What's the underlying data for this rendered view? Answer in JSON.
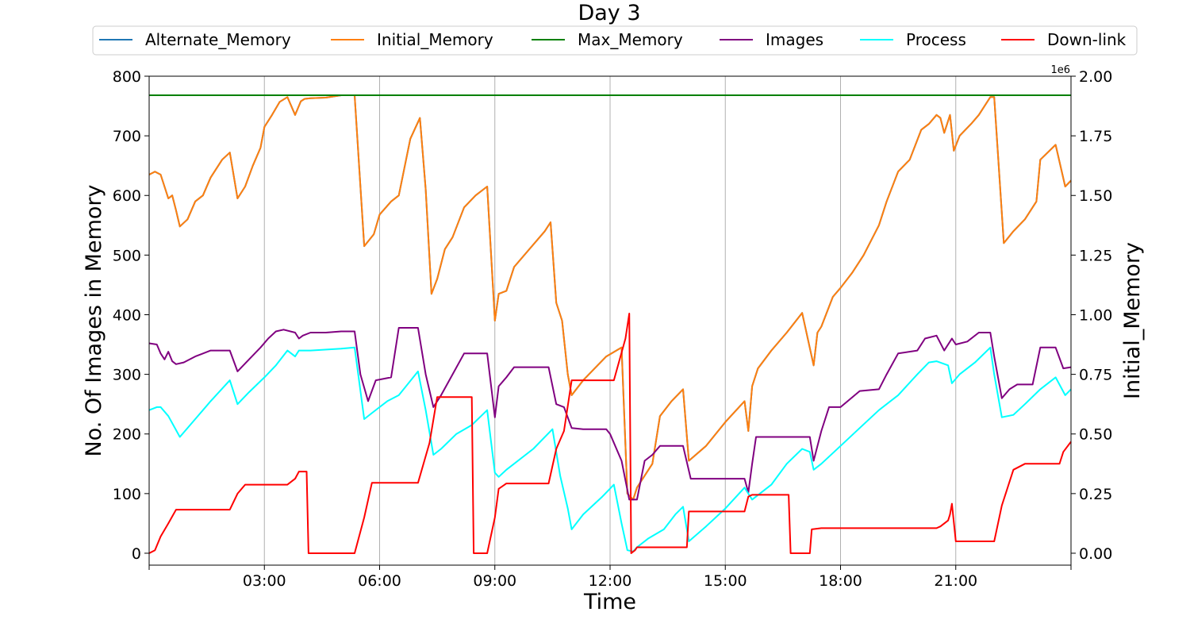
{
  "chart_data": {
    "type": "line",
    "title": "Day 3",
    "xlabel": "Time",
    "ylabel": "No. Of Images in Memory",
    "y2label": "Initial_Memory",
    "y2_offset_text": "1e6",
    "xlim": [
      0,
      24
    ],
    "ylim": [
      -20,
      800
    ],
    "y2lim": [
      -0.05,
      2.0
    ],
    "x_ticks": [
      3,
      6,
      9,
      12,
      15,
      18,
      21
    ],
    "x_tick_labels": [
      "03:00",
      "06:00",
      "09:00",
      "12:00",
      "15:00",
      "18:00",
      "21:00"
    ],
    "y_ticks": [
      0,
      100,
      200,
      300,
      400,
      500,
      600,
      700,
      800
    ],
    "y2_ticks": [
      0.0,
      0.25,
      0.5,
      0.75,
      1.0,
      1.25,
      1.5,
      1.75,
      2.0
    ],
    "y2_tick_labels": [
      "0.00",
      "0.25",
      "0.50",
      "0.75",
      "1.00",
      "1.25",
      "1.50",
      "1.75",
      "2.00"
    ],
    "grid": "vertical",
    "legend_position": "top",
    "series": [
      {
        "name": "Alternate_Memory",
        "color": "#1f77b4",
        "axis": "left",
        "x": [
          0,
          0.15,
          0.3,
          0.5,
          0.6,
          0.7,
          0.8,
          1.0,
          1.2,
          1.4,
          1.6,
          1.9,
          2.1,
          2.3,
          2.5,
          2.7,
          2.9,
          3.0,
          3.2,
          3.4,
          3.6,
          3.8,
          3.95,
          4.05,
          4.2,
          4.6,
          5.0,
          5.35,
          5.6,
          5.85,
          6.0,
          6.3,
          6.5,
          6.8,
          7.05,
          7.2,
          7.35,
          7.5,
          7.7,
          7.9,
          8.2,
          8.5,
          8.8,
          9.0,
          9.1,
          9.3,
          9.5,
          9.9,
          10.3,
          10.45,
          10.6,
          10.75,
          10.9,
          11.0,
          11.3,
          11.6,
          11.9,
          12.3,
          12.45,
          12.6,
          12.7,
          12.8,
          13.1,
          13.3,
          13.6,
          13.9,
          14.05,
          14.5,
          15.0,
          15.5,
          15.6,
          15.7,
          15.85,
          16.2,
          16.6,
          17.0,
          17.3,
          17.4,
          17.5,
          17.8,
          18.0,
          18.3,
          18.6,
          19.0,
          19.2,
          19.5,
          19.8,
          20.1,
          20.3,
          20.5,
          20.6,
          20.7,
          20.85,
          20.95,
          21.1,
          21.4,
          21.6,
          21.9,
          22.0,
          22.25,
          22.5,
          22.8,
          23.1,
          23.2,
          23.6,
          23.85,
          24.0
        ],
        "values": [
          635,
          640,
          635,
          595,
          600,
          575,
          548,
          560,
          590,
          600,
          630,
          660,
          672,
          595,
          615,
          650,
          680,
          715,
          735,
          757,
          765,
          735,
          758,
          762,
          763,
          764,
          768,
          768,
          515,
          535,
          568,
          590,
          600,
          695,
          730,
          610,
          435,
          460,
          510,
          530,
          580,
          600,
          615,
          390,
          435,
          440,
          480,
          510,
          540,
          555,
          420,
          390,
          300,
          265,
          290,
          310,
          330,
          345,
          100,
          90,
          110,
          120,
          150,
          230,
          255,
          275,
          155,
          180,
          220,
          255,
          205,
          280,
          310,
          340,
          370,
          403,
          315,
          370,
          380,
          430,
          445,
          470,
          500,
          550,
          590,
          640,
          660,
          710,
          720,
          735,
          730,
          705,
          735,
          675,
          700,
          720,
          735,
          765,
          765,
          520,
          540,
          560,
          590,
          660,
          685,
          615,
          625
        ]
      },
      {
        "name": "Initial_Memory",
        "color": "#ff7f0e",
        "axis": "left",
        "x": [
          0,
          0.15,
          0.3,
          0.5,
          0.6,
          0.7,
          0.8,
          1.0,
          1.2,
          1.4,
          1.6,
          1.9,
          2.1,
          2.3,
          2.5,
          2.7,
          2.9,
          3.0,
          3.2,
          3.4,
          3.6,
          3.8,
          3.95,
          4.05,
          4.2,
          4.6,
          5.0,
          5.35,
          5.6,
          5.85,
          6.0,
          6.3,
          6.5,
          6.8,
          7.05,
          7.2,
          7.35,
          7.5,
          7.7,
          7.9,
          8.2,
          8.5,
          8.8,
          9.0,
          9.1,
          9.3,
          9.5,
          9.9,
          10.3,
          10.45,
          10.6,
          10.75,
          10.9,
          11.0,
          11.3,
          11.6,
          11.9,
          12.3,
          12.45,
          12.6,
          12.7,
          12.8,
          13.1,
          13.3,
          13.6,
          13.9,
          14.05,
          14.5,
          15.0,
          15.5,
          15.6,
          15.7,
          15.85,
          16.2,
          16.6,
          17.0,
          17.3,
          17.4,
          17.5,
          17.8,
          18.0,
          18.3,
          18.6,
          19.0,
          19.2,
          19.5,
          19.8,
          20.1,
          20.3,
          20.5,
          20.6,
          20.7,
          20.85,
          20.95,
          21.1,
          21.4,
          21.6,
          21.9,
          22.0,
          22.25,
          22.5,
          22.8,
          23.1,
          23.2,
          23.6,
          23.85,
          24.0
        ],
        "values": [
          635,
          640,
          635,
          595,
          600,
          575,
          548,
          560,
          590,
          600,
          630,
          660,
          672,
          595,
          615,
          650,
          680,
          715,
          735,
          757,
          765,
          735,
          758,
          762,
          763,
          764,
          768,
          768,
          515,
          535,
          568,
          590,
          600,
          695,
          730,
          610,
          435,
          460,
          510,
          530,
          580,
          600,
          615,
          390,
          435,
          440,
          480,
          510,
          540,
          555,
          420,
          390,
          300,
          265,
          290,
          310,
          330,
          345,
          100,
          90,
          110,
          120,
          150,
          230,
          255,
          275,
          155,
          180,
          220,
          255,
          205,
          280,
          310,
          340,
          370,
          403,
          315,
          370,
          380,
          430,
          445,
          470,
          500,
          550,
          590,
          640,
          660,
          710,
          720,
          735,
          730,
          705,
          735,
          675,
          700,
          720,
          735,
          765,
          765,
          520,
          540,
          560,
          590,
          660,
          685,
          615,
          625
        ]
      },
      {
        "name": "Max_Memory",
        "color": "#008000",
        "axis": "left",
        "x": [
          0,
          24
        ],
        "values": [
          768,
          768
        ]
      },
      {
        "name": "Images",
        "color": "#800080",
        "axis": "left",
        "x": [
          0,
          0.2,
          0.3,
          0.4,
          0.5,
          0.6,
          0.7,
          0.9,
          1.2,
          1.6,
          2.1,
          2.3,
          2.6,
          2.9,
          3.1,
          3.3,
          3.5,
          3.8,
          3.9,
          4.0,
          4.2,
          4.6,
          5.0,
          5.35,
          5.5,
          5.7,
          5.9,
          6.3,
          6.5,
          7.0,
          7.2,
          7.4,
          7.6,
          7.9,
          8.2,
          8.8,
          9.0,
          9.1,
          9.3,
          9.5,
          10.4,
          10.6,
          10.8,
          11.0,
          11.3,
          11.9,
          12.0,
          12.3,
          12.5,
          12.7,
          12.9,
          13.1,
          13.3,
          13.6,
          13.9,
          14.1,
          15.0,
          15.5,
          15.6,
          15.7,
          15.8,
          16.5,
          17.2,
          17.3,
          17.5,
          17.7,
          18.0,
          18.5,
          19.0,
          19.2,
          19.5,
          20.0,
          20.2,
          20.5,
          20.7,
          20.9,
          21.0,
          21.3,
          21.6,
          21.9,
          22.0,
          22.2,
          22.4,
          22.6,
          23.0,
          23.2,
          23.6,
          23.8,
          24.0
        ],
        "values": [
          352,
          350,
          335,
          325,
          338,
          322,
          317,
          320,
          330,
          340,
          340,
          305,
          325,
          345,
          360,
          372,
          375,
          370,
          360,
          365,
          370,
          370,
          372,
          372,
          300,
          255,
          290,
          295,
          378,
          378,
          300,
          245,
          265,
          300,
          335,
          335,
          228,
          280,
          295,
          312,
          312,
          250,
          245,
          210,
          208,
          208,
          200,
          155,
          90,
          90,
          155,
          165,
          180,
          180,
          180,
          125,
          125,
          125,
          102,
          150,
          195,
          195,
          195,
          155,
          205,
          245,
          245,
          272,
          275,
          300,
          335,
          340,
          360,
          365,
          340,
          360,
          350,
          355,
          370,
          370,
          330,
          260,
          275,
          283,
          283,
          345,
          345,
          310,
          312
        ]
      },
      {
        "name": "Process",
        "color": "#00ffff",
        "axis": "left",
        "x": [
          0,
          0.2,
          0.3,
          0.5,
          0.8,
          1.2,
          1.6,
          2.1,
          2.3,
          2.6,
          3.0,
          3.3,
          3.6,
          3.8,
          3.9,
          4.0,
          4.2,
          5.0,
          5.35,
          5.6,
          5.8,
          6.2,
          6.5,
          7.0,
          7.2,
          7.4,
          7.6,
          8.0,
          8.4,
          8.8,
          9.0,
          9.1,
          9.3,
          10.0,
          10.5,
          10.7,
          10.9,
          11.0,
          11.3,
          11.8,
          12.1,
          12.3,
          12.45,
          12.6,
          12.7,
          13.0,
          13.4,
          13.7,
          13.9,
          14.05,
          14.5,
          15.0,
          15.5,
          15.6,
          15.7,
          16.2,
          16.6,
          17.0,
          17.2,
          17.3,
          17.5,
          18.0,
          18.5,
          19.0,
          19.5,
          20.0,
          20.3,
          20.5,
          20.8,
          20.9,
          21.1,
          21.5,
          21.9,
          22.0,
          22.2,
          22.5,
          22.8,
          23.2,
          23.6,
          23.85,
          24.0
        ],
        "values": [
          240,
          245,
          245,
          230,
          195,
          225,
          255,
          290,
          250,
          270,
          295,
          315,
          340,
          330,
          340,
          340,
          340,
          343,
          345,
          225,
          235,
          255,
          265,
          305,
          240,
          165,
          175,
          200,
          215,
          240,
          135,
          128,
          140,
          175,
          208,
          130,
          75,
          40,
          65,
          95,
          115,
          50,
          5,
          3,
          10,
          25,
          40,
          65,
          78,
          20,
          45,
          75,
          110,
          100,
          90,
          115,
          150,
          175,
          170,
          140,
          150,
          180,
          210,
          240,
          265,
          300,
          320,
          322,
          315,
          285,
          300,
          320,
          345,
          300,
          228,
          232,
          250,
          275,
          295,
          265,
          275
        ]
      },
      {
        "name": "Down-link",
        "color": "#ff0000",
        "axis": "left",
        "x": [
          0,
          0.15,
          0.3,
          0.5,
          0.7,
          2.1,
          2.3,
          2.5,
          3.6,
          3.8,
          3.9,
          4.1,
          4.15,
          4.5,
          5.35,
          5.6,
          5.8,
          7.0,
          7.3,
          7.5,
          8.4,
          8.45,
          8.8,
          9.0,
          9.1,
          9.3,
          10.4,
          10.6,
          10.8,
          11.0,
          12.1,
          12.4,
          12.5,
          12.55,
          12.65,
          12.7,
          12.8,
          13.0,
          13.5,
          14.0,
          14.05,
          14.2,
          15.5,
          15.6,
          15.7,
          16.65,
          16.7,
          17.0,
          17.2,
          17.25,
          17.5,
          20.5,
          20.6,
          20.8,
          20.85,
          20.9,
          21.0,
          21.5,
          21.8,
          22.0,
          22.2,
          22.5,
          22.8,
          23.5,
          23.7,
          23.8,
          24.0
        ],
        "values": [
          0,
          5,
          28,
          50,
          73,
          73,
          100,
          115,
          115,
          125,
          137,
          137,
          0,
          0,
          0,
          60,
          118,
          118,
          185,
          262,
          262,
          0,
          0,
          60,
          108,
          117,
          117,
          175,
          205,
          290,
          290,
          360,
          402,
          0,
          5,
          10,
          10,
          10,
          10,
          10,
          70,
          70,
          70,
          95,
          98,
          98,
          0,
          0,
          0,
          40,
          42,
          42,
          45,
          55,
          65,
          83,
          20,
          20,
          20,
          20,
          80,
          140,
          150,
          150,
          150,
          170,
          187
        ]
      }
    ]
  }
}
